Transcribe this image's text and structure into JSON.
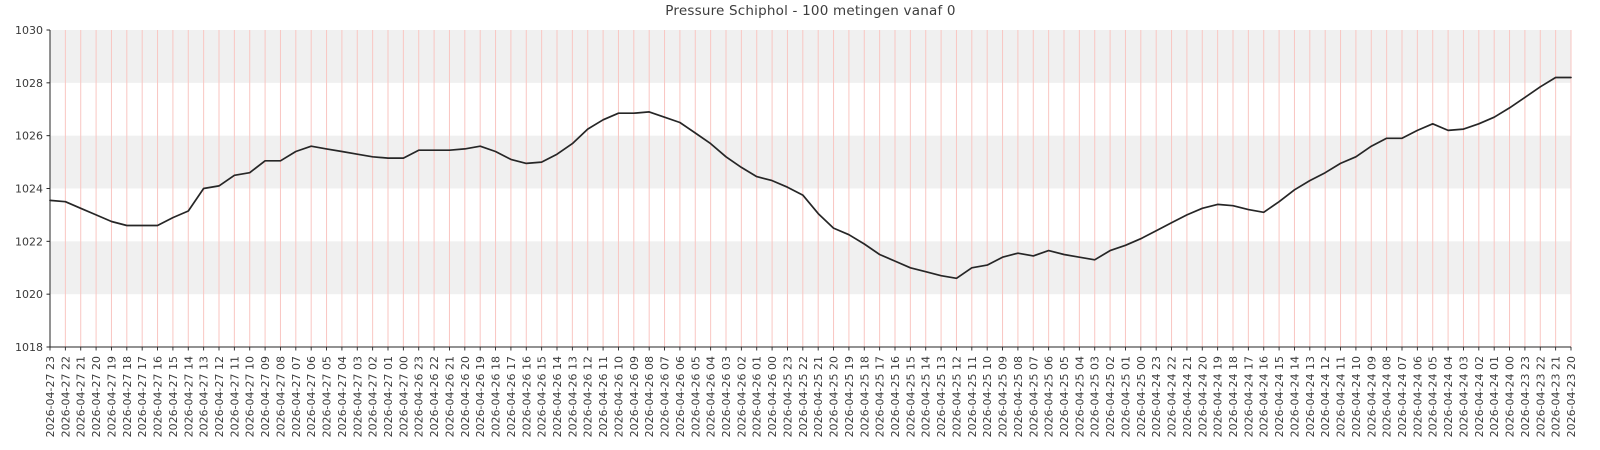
{
  "chart_data": {
    "type": "line",
    "title": "Pressure Schiphol - 100 metingen vanaf 0",
    "xlabel": "",
    "ylabel": "",
    "ylim": [
      1018,
      1030
    ],
    "y_ticks": [
      1018,
      1020,
      1022,
      1024,
      1026,
      1028,
      1030
    ],
    "legend": "none",
    "grid": "vertical light-red gridline at every x tick; alternating 2-hPa horizontal gray bands (1020-1022, 1024-1026, 1028-1030)",
    "colors": {
      "band": "#f0f0f0",
      "gridline": "#f9c6c2",
      "axis": "#262626",
      "line": "#262626",
      "text": "#3a3a3a",
      "title": "#3d3d3d"
    },
    "categories": [
      "2026-04-27 23",
      "2026-04-27 22",
      "2026-04-27 21",
      "2026-04-27 20",
      "2026-04-27 19",
      "2026-04-27 18",
      "2026-04-27 17",
      "2026-04-27 16",
      "2026-04-27 15",
      "2026-04-27 14",
      "2026-04-27 13",
      "2026-04-27 12",
      "2026-04-27 11",
      "2026-04-27 10",
      "2026-04-27 09",
      "2026-04-27 08",
      "2026-04-27 07",
      "2026-04-27 06",
      "2026-04-27 05",
      "2026-04-27 04",
      "2026-04-27 03",
      "2026-04-27 02",
      "2026-04-27 01",
      "2026-04-27 00",
      "2026-04-26 23",
      "2026-04-26 22",
      "2026-04-26 21",
      "2026-04-26 20",
      "2026-04-26 19",
      "2026-04-26 18",
      "2026-04-26 17",
      "2026-04-26 16",
      "2026-04-26 15",
      "2026-04-26 14",
      "2026-04-26 13",
      "2026-04-26 12",
      "2026-04-26 11",
      "2026-04-26 10",
      "2026-04-26 09",
      "2026-04-26 08",
      "2026-04-26 07",
      "2026-04-26 06",
      "2026-04-26 05",
      "2026-04-26 04",
      "2026-04-26 03",
      "2026-04-26 02",
      "2026-04-26 01",
      "2026-04-26 00",
      "2026-04-25 23",
      "2026-04-25 22",
      "2026-04-25 21",
      "2026-04-25 20",
      "2026-04-25 19",
      "2026-04-25 18",
      "2026-04-25 17",
      "2026-04-25 16",
      "2026-04-25 15",
      "2026-04-25 14",
      "2026-04-25 13",
      "2026-04-25 12",
      "2026-04-25 11",
      "2026-04-25 10",
      "2026-04-25 09",
      "2026-04-25 08",
      "2026-04-25 07",
      "2026-04-25 06",
      "2026-04-25 05",
      "2026-04-25 04",
      "2026-04-25 03",
      "2026-04-25 02",
      "2026-04-25 01",
      "2026-04-25 00",
      "2026-04-24 23",
      "2026-04-24 22",
      "2026-04-24 21",
      "2026-04-24 20",
      "2026-04-24 19",
      "2026-04-24 18",
      "2026-04-24 17",
      "2026-04-24 16",
      "2026-04-24 15",
      "2026-04-24 14",
      "2026-04-24 13",
      "2026-04-24 12",
      "2026-04-24 11",
      "2026-04-24 10",
      "2026-04-24 09",
      "2026-04-24 08",
      "2026-04-24 07",
      "2026-04-24 06",
      "2026-04-24 05",
      "2026-04-24 04",
      "2026-04-24 03",
      "2026-04-24 02",
      "2026-04-24 01",
      "2026-04-24 00",
      "2026-04-23 23",
      "2026-04-23 22",
      "2026-04-23 21",
      "2026-04-23 20"
    ],
    "values": [
      1023.55,
      1023.5,
      1023.25,
      1023.0,
      1022.75,
      1022.6,
      1022.6,
      1022.6,
      1022.9,
      1023.15,
      1024.0,
      1024.1,
      1024.5,
      1024.6,
      1025.05,
      1025.05,
      1025.4,
      1025.6,
      1025.5,
      1025.4,
      1025.3,
      1025.2,
      1025.15,
      1025.15,
      1025.45,
      1025.45,
      1025.45,
      1025.5,
      1025.6,
      1025.4,
      1025.1,
      1024.95,
      1025.0,
      1025.3,
      1025.7,
      1026.25,
      1026.6,
      1026.85,
      1026.85,
      1026.9,
      1026.7,
      1026.5,
      1026.1,
      1025.7,
      1025.2,
      1024.8,
      1024.45,
      1024.3,
      1024.05,
      1023.75,
      1023.05,
      1022.5,
      1022.25,
      1021.9,
      1021.5,
      1021.25,
      1021.0,
      1020.85,
      1020.7,
      1020.6,
      1021.0,
      1021.1,
      1021.4,
      1021.55,
      1021.45,
      1021.65,
      1021.5,
      1021.4,
      1021.3,
      1021.65,
      1021.85,
      1022.1,
      1022.4,
      1022.7,
      1023.0,
      1023.25,
      1023.4,
      1023.35,
      1023.2,
      1023.1,
      1023.5,
      1023.95,
      1024.3,
      1024.6,
      1024.95,
      1025.2,
      1025.6,
      1025.9,
      1025.9,
      1026.2,
      1026.45,
      1026.2,
      1026.25,
      1026.45,
      1026.7,
      1027.05,
      1027.45,
      1027.85,
      1028.2,
      1028.2
    ]
  }
}
